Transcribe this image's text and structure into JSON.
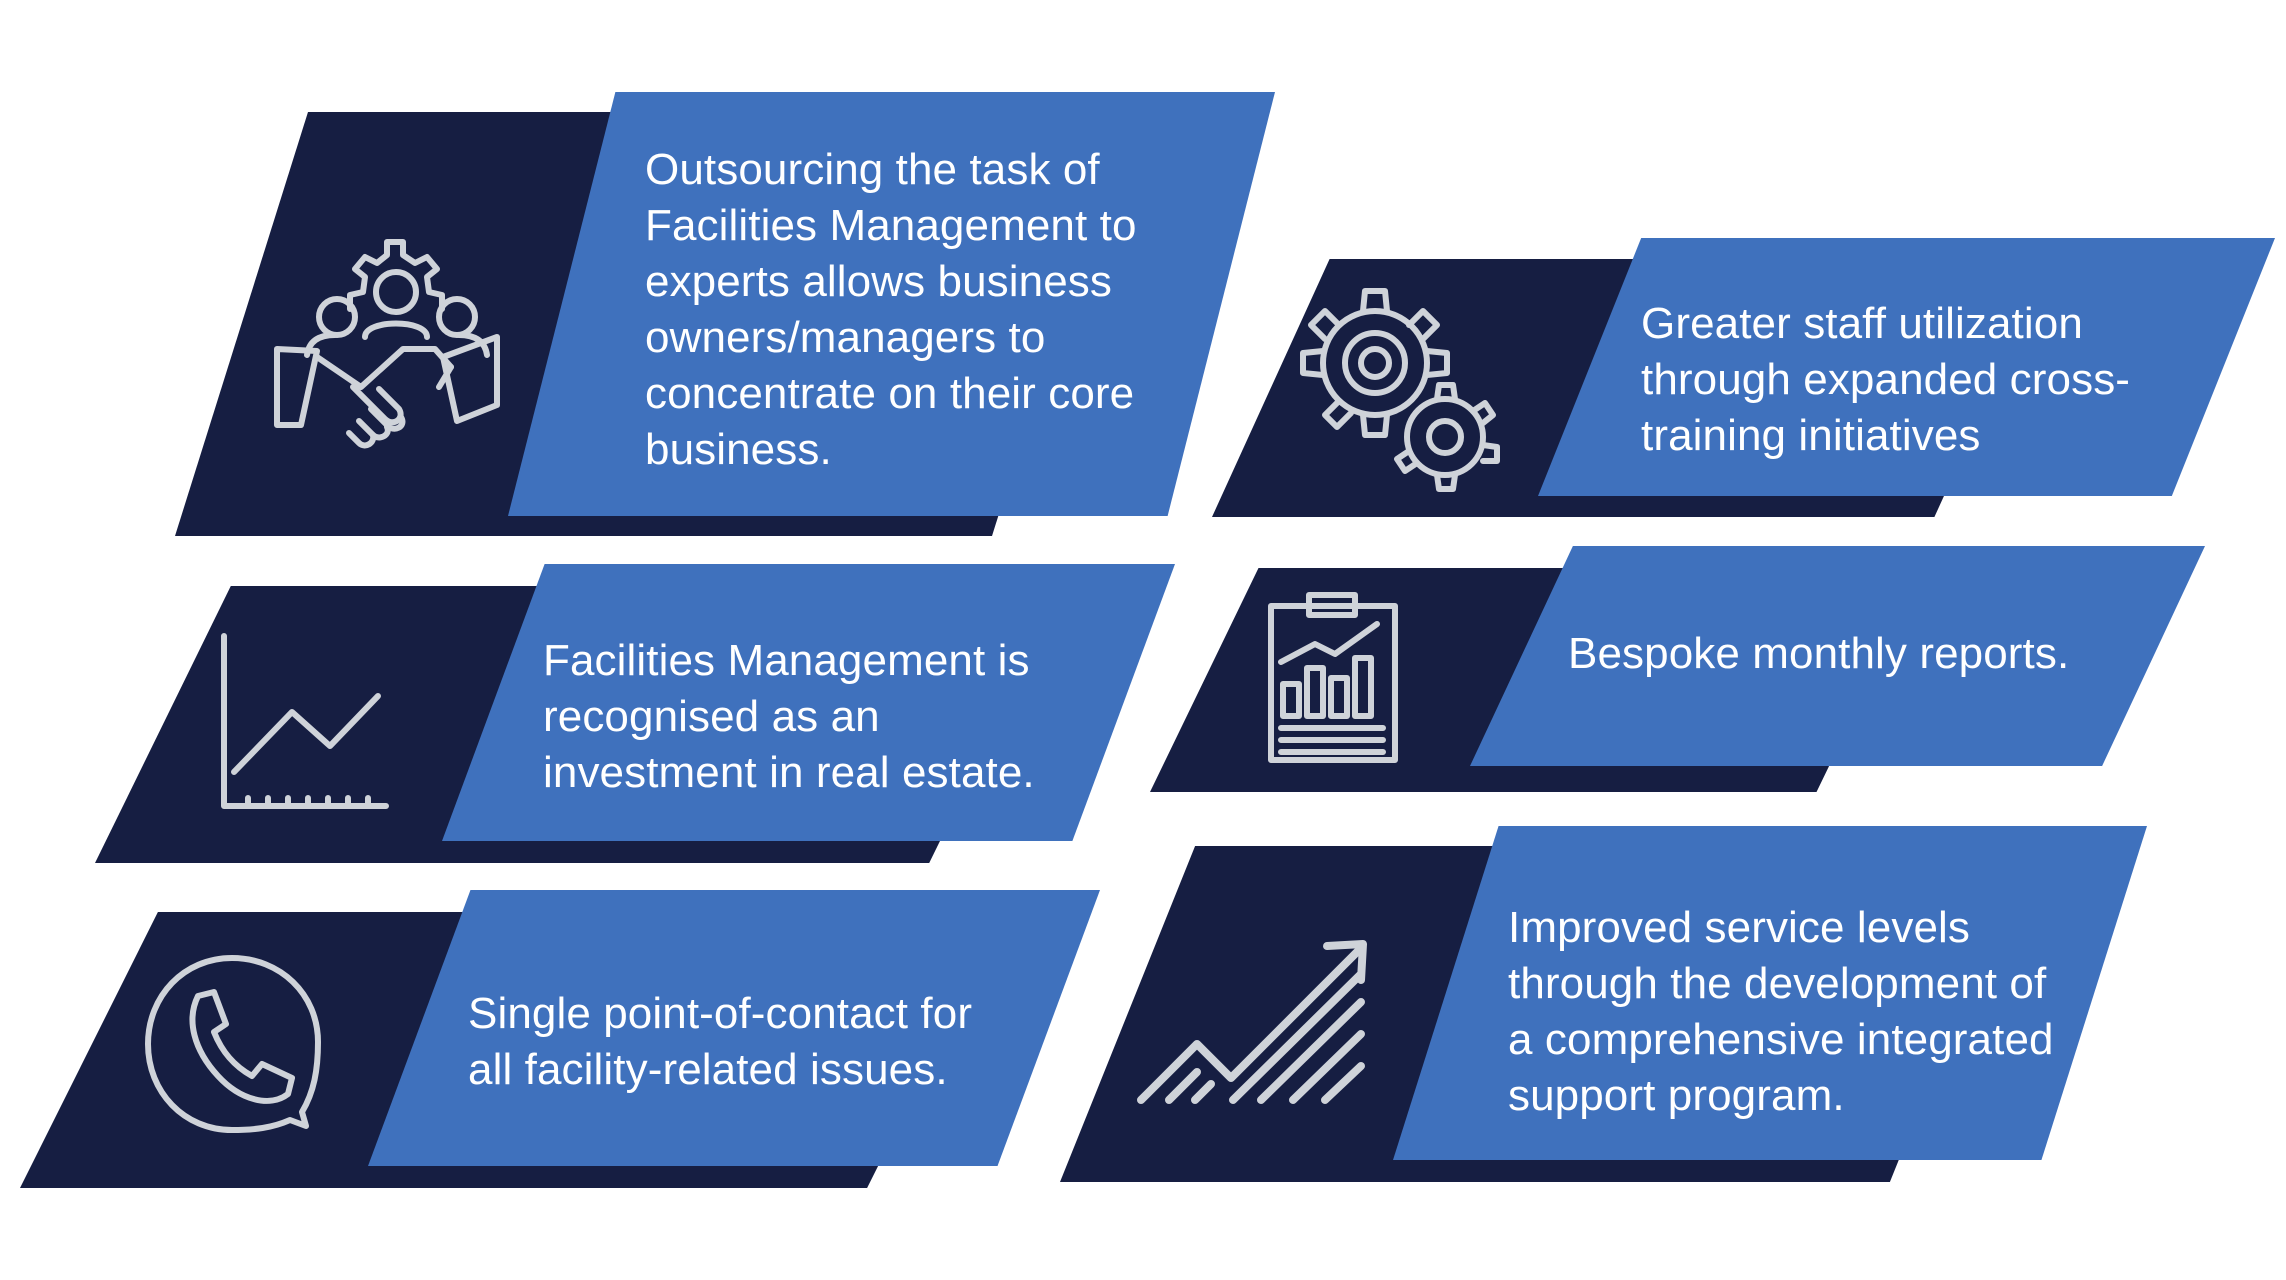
{
  "colors": {
    "dark_navy": "#161e42",
    "blue": "#3f71bd",
    "icon_gray": "#cfd3d9",
    "text": "#ffffff"
  },
  "cards": [
    {
      "icon": "handshake-team-gear-icon",
      "text": "Outsourcing the task of\nFacilities Management to\nexperts allows business\nowners/managers to\nconcentrate on their core\nbusiness."
    },
    {
      "icon": "gears-icon",
      "text": "Greater staff utilization\nthrough expanded cross-\ntraining initiatives"
    },
    {
      "icon": "line-chart-icon",
      "text": "Facilities Management is\nrecognised as an\ninvestment in real estate."
    },
    {
      "icon": "clipboard-report-icon",
      "text": "Bespoke monthly reports."
    },
    {
      "icon": "phone-bubble-icon",
      "text": "Single point-of-contact for\nall facility-related issues."
    },
    {
      "icon": "growth-arrow-icon",
      "text": "Improved service levels\nthrough the development of\na comprehensive integrated\nsupport program."
    }
  ]
}
